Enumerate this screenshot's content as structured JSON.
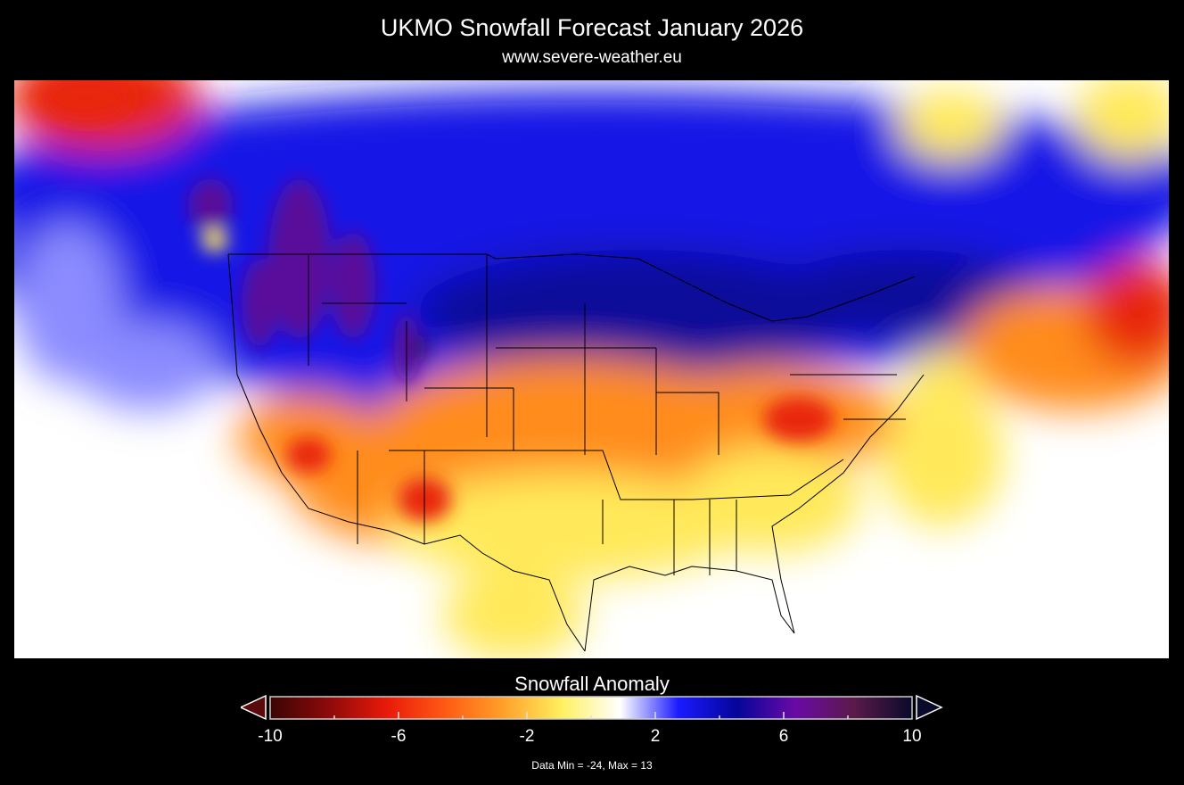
{
  "header": {
    "title": "UKMO Snowfall Forecast  January 2026",
    "subtitle": "www.severe-weather.eu"
  },
  "map": {
    "region": "North America (USA and southern Canada)",
    "variable": "snowfall anomaly",
    "colors": {
      "background": "#000000",
      "no_anomaly": "#ffffff",
      "deficit_strong": "#e8250f",
      "deficit_moderate": "#ff8c1a",
      "deficit_weak": "#ffe95a",
      "surplus_weak": "#8c8cff",
      "surplus_moderate": "#1414e6",
      "surplus_strong": "#0a0a9a",
      "surplus_extreme": "#5a0a9a"
    }
  },
  "legend": {
    "title": "Snowfall Anomaly",
    "min": -10,
    "max": 10,
    "tick_labels": [
      "-10",
      "-6",
      "-2",
      "2",
      "6",
      "10"
    ],
    "extend": "both",
    "color_stops": [
      "#3a0505",
      "#8c0a0a",
      "#e81a0a",
      "#ff5a14",
      "#ffa02a",
      "#fff060",
      "#ffffff",
      "#1a1aff",
      "#05059a",
      "#6a0aa5",
      "#5a1a4a",
      "#0a0a2a"
    ]
  },
  "footer": {
    "data_range": "Data Min = -24, Max = 13"
  }
}
